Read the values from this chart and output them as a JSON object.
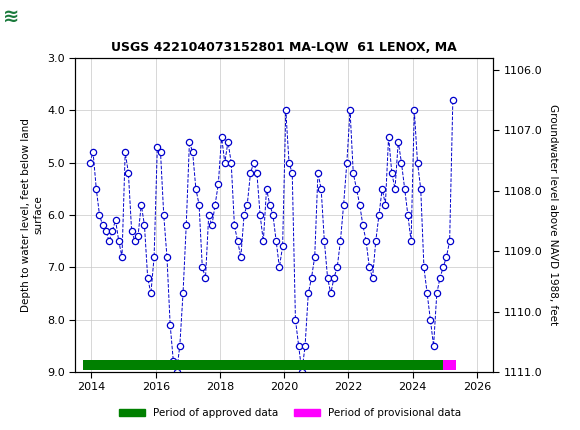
{
  "title": "USGS 422104073152801 MA-LQW  61 LENOX, MA",
  "header_color": "#1a7a3c",
  "ylabel_left": "Depth to water level, feet below land\nsurface",
  "ylabel_right": "Groundwater level above NAVD 1988, feet",
  "ylim_left": [
    3.0,
    9.0
  ],
  "ylim_right": [
    1111.0,
    1105.8
  ],
  "xlim": [
    2013.5,
    2026.5
  ],
  "xticks": [
    2014,
    2016,
    2018,
    2020,
    2022,
    2024,
    2026
  ],
  "yticks_left": [
    3.0,
    4.0,
    5.0,
    6.0,
    7.0,
    8.0,
    9.0
  ],
  "yticks_right": [
    1111.0,
    1110.0,
    1109.0,
    1108.0,
    1107.0,
    1106.0
  ],
  "line_color": "#0000cc",
  "marker_color": "#0000cc",
  "approved_bar_color": "#008000",
  "provisional_bar_color": "#ff00ff",
  "approved_bar_x_start": 2013.75,
  "approved_bar_x_end": 2024.95,
  "provisional_bar_x_start": 2024.95,
  "provisional_bar_x_end": 2025.35,
  "bar_y": 8.87,
  "bar_height": 0.18,
  "data_x": [
    2013.95,
    2014.05,
    2014.15,
    2014.25,
    2014.35,
    2014.45,
    2014.55,
    2014.65,
    2014.75,
    2014.85,
    2014.95,
    2015.05,
    2015.15,
    2015.25,
    2015.35,
    2015.45,
    2015.55,
    2015.65,
    2015.75,
    2015.85,
    2015.95,
    2016.05,
    2016.15,
    2016.25,
    2016.35,
    2016.45,
    2016.55,
    2016.65,
    2016.75,
    2016.85,
    2016.95,
    2017.05,
    2017.15,
    2017.25,
    2017.35,
    2017.45,
    2017.55,
    2017.65,
    2017.75,
    2017.85,
    2017.95,
    2018.05,
    2018.15,
    2018.25,
    2018.35,
    2018.45,
    2018.55,
    2018.65,
    2018.75,
    2018.85,
    2018.95,
    2019.05,
    2019.15,
    2019.25,
    2019.35,
    2019.45,
    2019.55,
    2019.65,
    2019.75,
    2019.85,
    2019.95,
    2020.05,
    2020.15,
    2020.25,
    2020.35,
    2020.45,
    2020.55,
    2020.65,
    2020.75,
    2020.85,
    2020.95,
    2021.05,
    2021.15,
    2021.25,
    2021.35,
    2021.45,
    2021.55,
    2021.65,
    2021.75,
    2021.85,
    2021.95,
    2022.05,
    2022.15,
    2022.25,
    2022.35,
    2022.45,
    2022.55,
    2022.65,
    2022.75,
    2022.85,
    2022.95,
    2023.05,
    2023.15,
    2023.25,
    2023.35,
    2023.45,
    2023.55,
    2023.65,
    2023.75,
    2023.85,
    2023.95,
    2024.05,
    2024.15,
    2024.25,
    2024.35,
    2024.45,
    2024.55,
    2024.65,
    2024.75,
    2024.85,
    2024.95,
    2025.05,
    2025.15,
    2025.25
  ],
  "data_y": [
    5.0,
    4.8,
    5.5,
    6.0,
    6.2,
    6.3,
    6.5,
    6.3,
    6.1,
    6.5,
    6.8,
    4.8,
    5.2,
    6.3,
    6.5,
    6.4,
    5.8,
    6.2,
    7.2,
    7.5,
    6.8,
    4.7,
    4.8,
    6.0,
    6.8,
    8.1,
    8.8,
    9.0,
    8.5,
    7.5,
    6.2,
    4.6,
    4.8,
    5.5,
    5.8,
    7.0,
    7.2,
    6.0,
    6.2,
    5.8,
    5.4,
    4.5,
    5.0,
    4.6,
    5.0,
    6.2,
    6.5,
    6.8,
    6.0,
    5.8,
    5.2,
    5.0,
    5.2,
    6.0,
    6.5,
    5.5,
    5.8,
    6.0,
    6.5,
    7.0,
    6.6,
    4.0,
    5.0,
    5.2,
    8.0,
    8.5,
    9.0,
    8.5,
    7.5,
    7.2,
    6.8,
    5.2,
    5.5,
    6.5,
    7.2,
    7.5,
    7.2,
    7.0,
    6.5,
    5.8,
    5.0,
    4.0,
    5.2,
    5.5,
    5.8,
    6.2,
    6.5,
    7.0,
    7.2,
    6.5,
    6.0,
    5.5,
    5.8,
    4.5,
    5.2,
    5.5,
    4.6,
    5.0,
    5.5,
    6.0,
    6.5,
    4.0,
    5.0,
    5.5,
    7.0,
    7.5,
    8.0,
    8.5,
    7.5,
    7.2,
    7.0,
    6.8,
    6.5,
    3.8
  ],
  "background_color": "#ffffff",
  "grid_color": "#c8c8c8"
}
